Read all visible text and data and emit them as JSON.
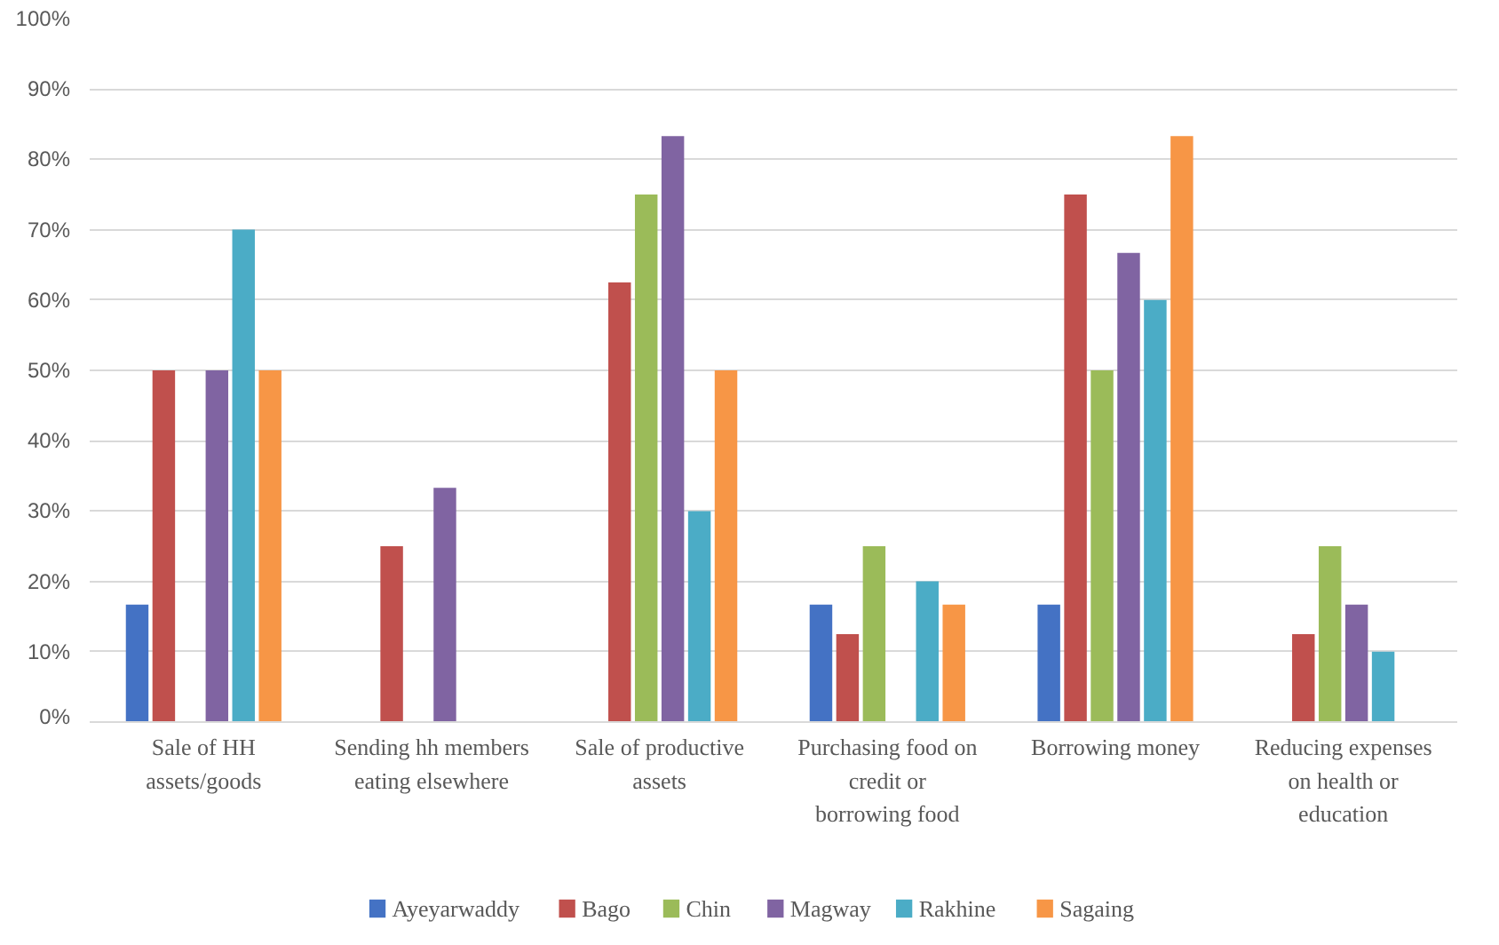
{
  "chart_data": {
    "type": "bar",
    "categories": [
      "Sale of HH assets/goods",
      "Sending hh members eating elsewhere",
      "Sale of productive assets",
      "Purchasing food on credit or borrowing food",
      "Borrowing money",
      "Reducing expenses on health or education"
    ],
    "series": [
      {
        "name": "Ayeyarwaddy",
        "color": "#4472c4",
        "values": [
          16.7,
          0,
          0,
          16.7,
          16.7,
          0
        ]
      },
      {
        "name": "Bago",
        "color": "#c0504d",
        "values": [
          50,
          25,
          62.5,
          12.5,
          75,
          12.5
        ]
      },
      {
        "name": "Chin",
        "color": "#9bbb59",
        "values": [
          0,
          0,
          75,
          25,
          50,
          25
        ]
      },
      {
        "name": "Magway",
        "color": "#8064a2",
        "values": [
          50,
          33.3,
          83.3,
          0,
          66.7,
          16.7
        ]
      },
      {
        "name": "Rakhine",
        "color": "#4bacc6",
        "values": [
          70,
          0,
          30,
          20,
          60,
          10
        ]
      },
      {
        "name": "Sagaing",
        "color": "#f79646",
        "values": [
          50,
          0,
          50,
          16.7,
          83.3,
          0
        ]
      }
    ],
    "ylim": [
      0,
      100
    ],
    "yticks": [
      {
        "value": 0,
        "label": "0%"
      },
      {
        "value": 10,
        "label": "10%"
      },
      {
        "value": 20,
        "label": "20%"
      },
      {
        "value": 30,
        "label": "30%"
      },
      {
        "value": 40,
        "label": "40%"
      },
      {
        "value": 50,
        "label": "50%"
      },
      {
        "value": 60,
        "label": "60%"
      },
      {
        "value": 70,
        "label": "70%"
      },
      {
        "value": 80,
        "label": "80%"
      },
      {
        "value": 90,
        "label": "90%"
      },
      {
        "value": 100,
        "label": "100%"
      }
    ],
    "grid": "y",
    "legend": "bottom"
  }
}
